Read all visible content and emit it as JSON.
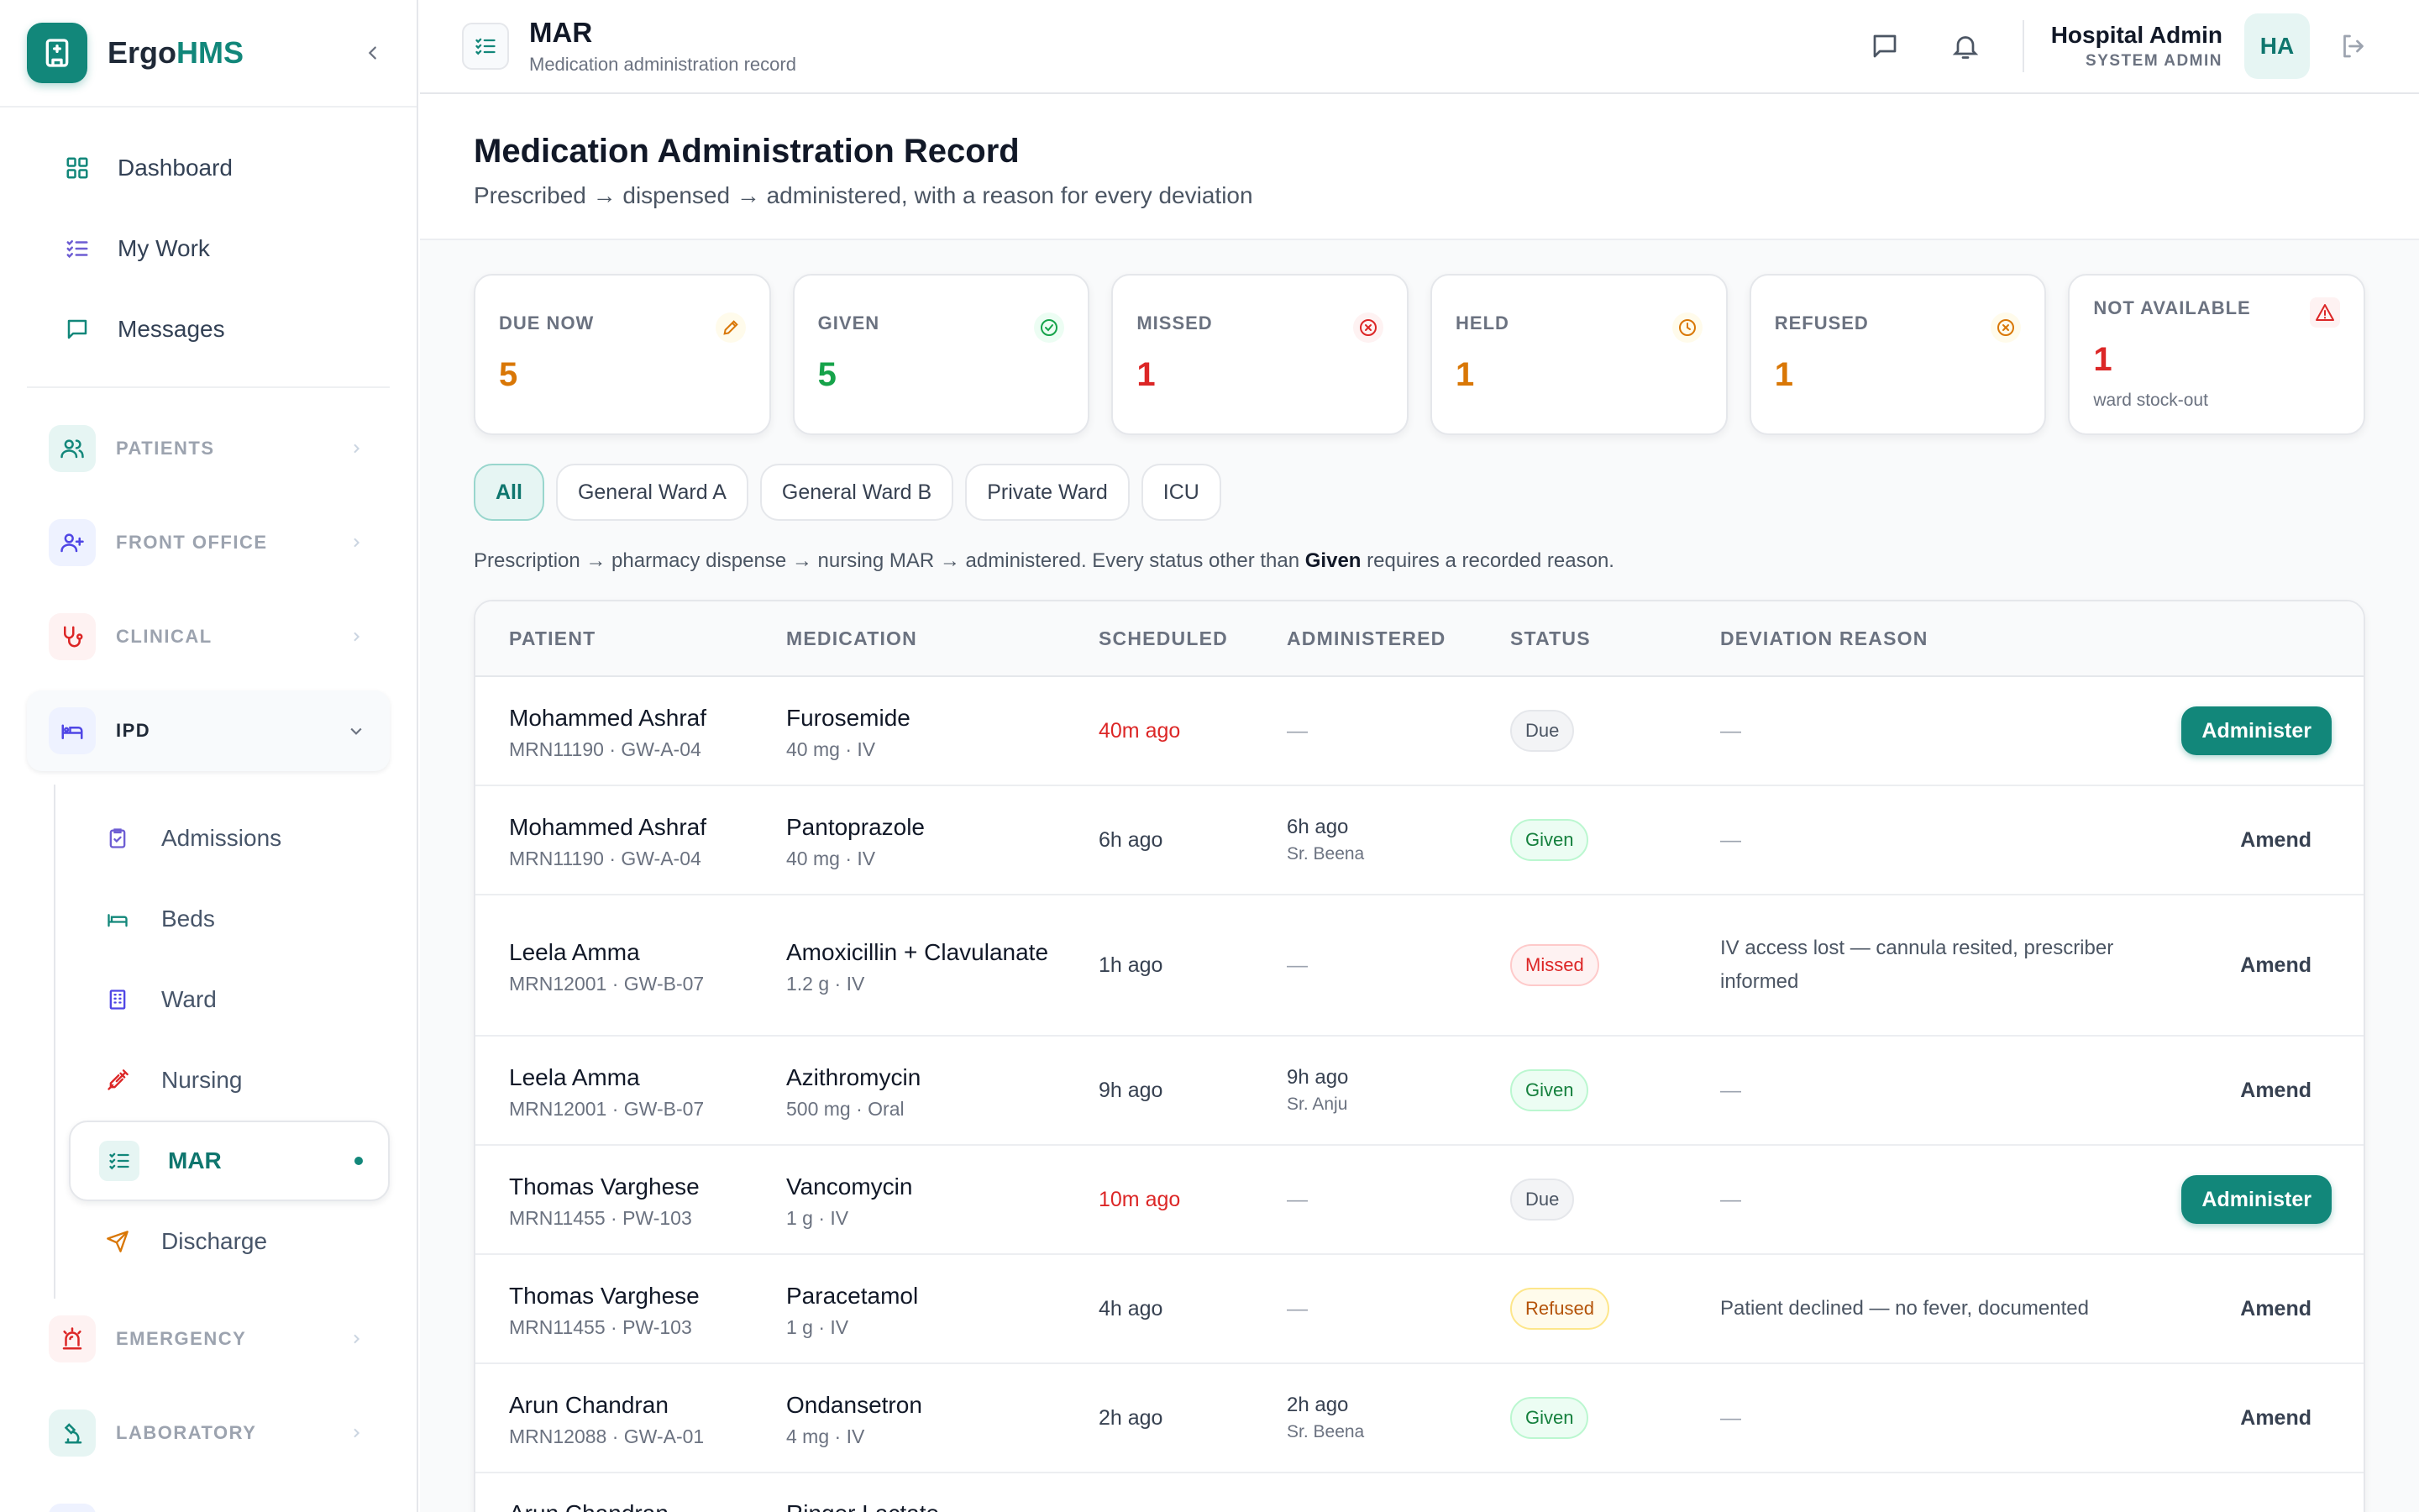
{
  "brand": {
    "name_prefix": "Ergo",
    "name_accent": "HMS"
  },
  "nav": [
    {
      "label": "Dashboard",
      "icon": "dashboard-icon"
    },
    {
      "label": "My Work",
      "icon": "checklist-icon"
    },
    {
      "label": "Messages",
      "icon": "message-icon"
    }
  ],
  "sections": {
    "patients": "PATIENTS",
    "front_office": "FRONT OFFICE",
    "clinical": "CLINICAL",
    "ipd": "IPD",
    "emergency": "EMERGENCY",
    "laboratory": "LABORATORY"
  },
  "ipd_items": {
    "admissions": "Admissions",
    "beds": "Beds",
    "ward": "Ward",
    "nursing": "Nursing",
    "mar": "MAR",
    "discharge": "Discharge"
  },
  "topbar": {
    "title": "MAR",
    "subtitle": "Medication administration record",
    "user_name": "Hospital Admin",
    "user_role": "SYSTEM ADMIN",
    "avatar_initials": "HA"
  },
  "page": {
    "title": "Medication Administration Record",
    "subtitle": "Prescribed → dispensed → administered, with a reason for every deviation"
  },
  "stats": {
    "due_now": {
      "label": "DUE NOW",
      "value": "5",
      "color": "#d97706"
    },
    "given": {
      "label": "GIVEN",
      "value": "5",
      "color": "#16a34a"
    },
    "missed": {
      "label": "MISSED",
      "value": "1",
      "color": "#dc2626"
    },
    "held": {
      "label": "HELD",
      "value": "1",
      "color": "#d97706"
    },
    "refused": {
      "label": "REFUSED",
      "value": "1",
      "color": "#d97706"
    },
    "not_available": {
      "label": "NOT AVAILABLE",
      "value": "1",
      "note": "ward stock-out",
      "color": "#dc2626"
    }
  },
  "filters": [
    "All",
    "General Ward A",
    "General Ward B",
    "Private Ward",
    "ICU"
  ],
  "info": {
    "before": "Prescription → pharmacy dispense → nursing MAR → administered. Every status other than ",
    "bold": "Given",
    "after": " requires a recorded reason."
  },
  "table": {
    "headers": {
      "patient": "PATIENT",
      "medication": "MEDICATION",
      "scheduled": "SCHEDULED",
      "administered": "ADMINISTERED",
      "status": "STATUS",
      "reason": "DEVIATION REASON"
    },
    "rows": [
      {
        "patient": "Mohammed Ashraf",
        "mrn": "MRN11190 · GW-A-04",
        "medication": "Furosemide",
        "dose": "40 mg · IV",
        "scheduled": "40m ago",
        "administered": "—",
        "by": "",
        "status": "Due",
        "reason": "—",
        "action": "Administer"
      },
      {
        "patient": "Mohammed Ashraf",
        "mrn": "MRN11190 · GW-A-04",
        "medication": "Pantoprazole",
        "dose": "40 mg · IV",
        "scheduled": "6h ago",
        "administered": "6h ago",
        "by": "Sr. Beena",
        "status": "Given",
        "reason": "—",
        "action": "Amend"
      },
      {
        "patient": "Leela Amma",
        "mrn": "MRN12001 · GW-B-07",
        "medication": "Amoxicillin + Clavulanate",
        "dose": "1.2 g · IV",
        "scheduled": "1h ago",
        "administered": "—",
        "by": "",
        "status": "Missed",
        "reason": "IV access lost — cannula resited, prescriber informed",
        "action": "Amend"
      },
      {
        "patient": "Leela Amma",
        "mrn": "MRN12001 · GW-B-07",
        "medication": "Azithromycin",
        "dose": "500 mg · Oral",
        "scheduled": "9h ago",
        "administered": "9h ago",
        "by": "Sr. Anju",
        "status": "Given",
        "reason": "—",
        "action": "Amend"
      },
      {
        "patient": "Thomas Varghese",
        "mrn": "MRN11455 · PW-103",
        "medication": "Vancomycin",
        "dose": "1 g · IV",
        "scheduled": "10m ago",
        "administered": "—",
        "by": "",
        "status": "Due",
        "reason": "—",
        "action": "Administer"
      },
      {
        "patient": "Thomas Varghese",
        "mrn": "MRN11455 · PW-103",
        "medication": "Paracetamol",
        "dose": "1 g · IV",
        "scheduled": "4h ago",
        "administered": "—",
        "by": "",
        "status": "Refused",
        "reason": "Patient declined — no fever, documented",
        "action": "Amend"
      },
      {
        "patient": "Arun Chandran",
        "mrn": "MRN12088 · GW-A-01",
        "medication": "Ondansetron",
        "dose": "4 mg · IV",
        "scheduled": "2h ago",
        "administered": "2h ago",
        "by": "Sr. Beena",
        "status": "Given",
        "reason": "—",
        "action": "Amend"
      },
      {
        "patient": "Arun Chandran",
        "mrn": "",
        "medication": "Ringer Lactate",
        "dose": "",
        "scheduled": "",
        "administered": "",
        "by": "",
        "status": "",
        "reason": "",
        "action": ""
      }
    ]
  },
  "colors": {
    "accent": "#12877a",
    "late": "#dc2626"
  }
}
